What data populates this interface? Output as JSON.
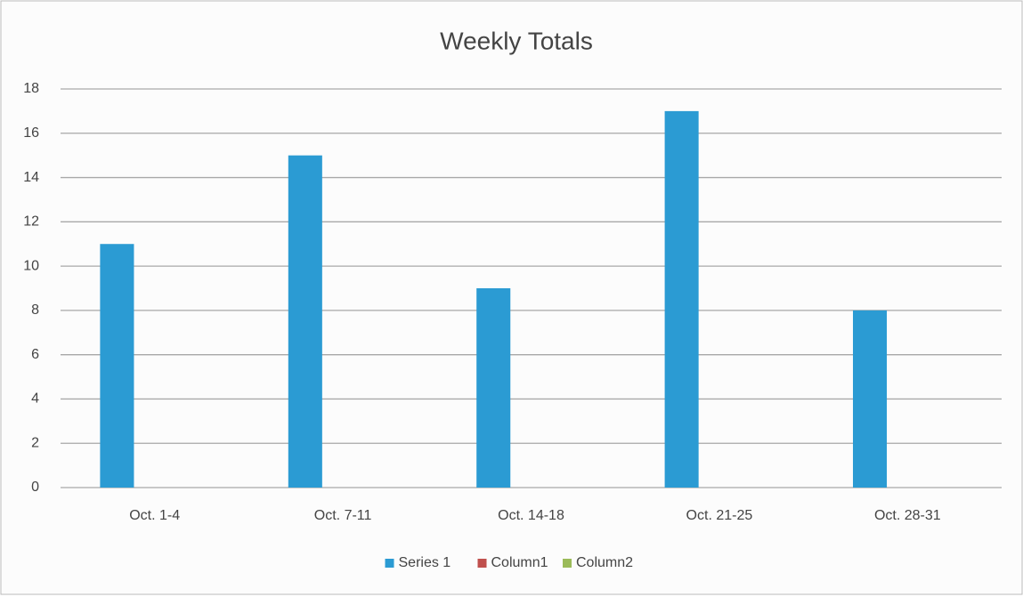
{
  "chart_data": {
    "type": "bar",
    "title": "Weekly Totals",
    "categories": [
      "Oct. 1-4",
      "Oct. 7-11",
      "Oct. 14-18",
      "Oct. 21-25",
      "Oct. 28-31"
    ],
    "series": [
      {
        "name": "Series 1",
        "color": "#2b9bd3",
        "values": [
          11,
          15,
          9,
          17,
          8
        ]
      },
      {
        "name": "Column1",
        "color": "#c0504d",
        "values": [
          null,
          null,
          null,
          null,
          null
        ]
      },
      {
        "name": "Column2",
        "color": "#9bbb59",
        "values": [
          null,
          null,
          null,
          null,
          null
        ]
      }
    ],
    "ylim": [
      0,
      18
    ],
    "yticks": [
      0,
      2,
      4,
      6,
      8,
      10,
      12,
      14,
      16,
      18
    ],
    "grid": true,
    "legend": "bottom"
  }
}
